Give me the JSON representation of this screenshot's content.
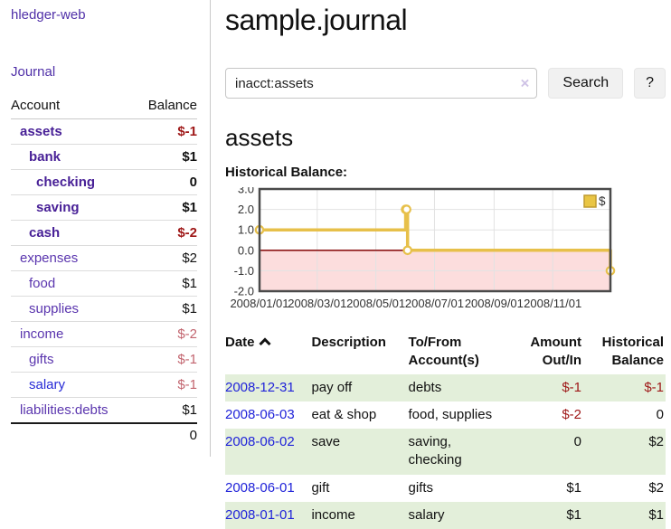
{
  "sidebar": {
    "brand": "hledger-web",
    "journal_link": "Journal",
    "accounts": {
      "headers": {
        "account": "Account",
        "balance": "Balance"
      },
      "rows": [
        {
          "name": "assets",
          "balance": "$-1",
          "indent": 1,
          "bold": true,
          "amount_class": "neg-strong"
        },
        {
          "name": "bank",
          "balance": "$1",
          "indent": 2,
          "bold": true,
          "amount_class": "pos"
        },
        {
          "name": "checking",
          "balance": "0",
          "indent": 3,
          "bold": true,
          "amount_class": "pos"
        },
        {
          "name": "saving",
          "balance": "$1",
          "indent": 3,
          "bold": true,
          "amount_class": "pos"
        },
        {
          "name": "cash",
          "balance": "$-2",
          "indent": 2,
          "bold": true,
          "amount_class": "neg-strong"
        },
        {
          "name": "expenses",
          "balance": "$2",
          "indent": 1,
          "bold": false,
          "amount_class": "pos"
        },
        {
          "name": "food",
          "balance": "$1",
          "indent": 2,
          "bold": false,
          "amount_class": "pos"
        },
        {
          "name": "supplies",
          "balance": "$1",
          "indent": 2,
          "bold": false,
          "amount_class": "pos"
        },
        {
          "name": "income",
          "balance": "$-2",
          "indent": 1,
          "bold": false,
          "amount_class": "neg-soft"
        },
        {
          "name": "gifts",
          "balance": "$-1",
          "indent": 2,
          "bold": false,
          "amount_class": "neg-soft"
        },
        {
          "name": "salary",
          "balance": "$-1",
          "indent": 2,
          "bold": false,
          "amount_class": "neg-soft",
          "link_style": "blue"
        },
        {
          "name": "liabilities:debts",
          "balance": "$1",
          "indent": 1,
          "bold": false,
          "amount_class": "pos"
        }
      ],
      "total": "0"
    }
  },
  "main": {
    "title": "sample.journal",
    "search": {
      "value": "inacct:assets",
      "clear_icon": "×",
      "search_label": "Search",
      "help_label": "?"
    },
    "account_heading": "assets",
    "chart_label": "Historical Balance:",
    "register": {
      "headers": {
        "date": "Date",
        "description": "Description",
        "accounts": "To/From Account(s)",
        "amount": "Amount Out/In",
        "balance": "Historical Balance"
      },
      "rows": [
        {
          "date": "2008-12-31",
          "description": "pay off",
          "accounts": "debts",
          "amount": "$-1",
          "amount_class": "neg-strong",
          "balance": "$-1",
          "balance_class": "neg-strong"
        },
        {
          "date": "2008-06-03",
          "description": "eat & shop",
          "accounts": "food, supplies",
          "amount": "$-2",
          "amount_class": "neg-strong",
          "balance": "0",
          "balance_class": "pos"
        },
        {
          "date": "2008-06-02",
          "description": "save",
          "accounts": "saving, checking",
          "amount": "0",
          "amount_class": "pos",
          "balance": "$2",
          "balance_class": "pos"
        },
        {
          "date": "2008-06-01",
          "description": "gift",
          "accounts": "gifts",
          "amount": "$1",
          "amount_class": "pos",
          "balance": "$2",
          "balance_class": "pos"
        },
        {
          "date": "2008-01-01",
          "description": "income",
          "accounts": "salary",
          "amount": "$1",
          "amount_class": "pos",
          "balance": "$1",
          "balance_class": "pos"
        }
      ]
    }
  },
  "chart_data": {
    "type": "line",
    "title": "Historical Balance:",
    "step": true,
    "series": [
      {
        "name": "$",
        "points": [
          [
            "2008-01-01",
            1
          ],
          [
            "2008-06-01",
            2
          ],
          [
            "2008-06-02",
            2
          ],
          [
            "2008-06-03",
            0
          ],
          [
            "2008-12-31",
            -1
          ]
        ]
      }
    ],
    "x_range": [
      "2008-01-01",
      "2008-12-31"
    ],
    "ylim": [
      -2,
      3
    ],
    "ytick_labels": [
      "3.0",
      "2.0",
      "1.0",
      "0.0",
      "-1.0",
      "-2.0"
    ],
    "xtick_labels": [
      "2008/01/01",
      "2008/03/01",
      "2008/05/01",
      "2008/07/01",
      "2008/09/01",
      "2008/11/01"
    ],
    "legend_position": "top-right",
    "grid": true,
    "colors": {
      "line": "#e7c04a",
      "legend_fill": "#e9c544",
      "legend_border": "#bf9b30",
      "negative_fill": "#fcdddd",
      "zero_line": "#8c1717",
      "grid": "#e2e2e2",
      "border": "#4a4a4a",
      "tick_text": "#333333"
    }
  }
}
